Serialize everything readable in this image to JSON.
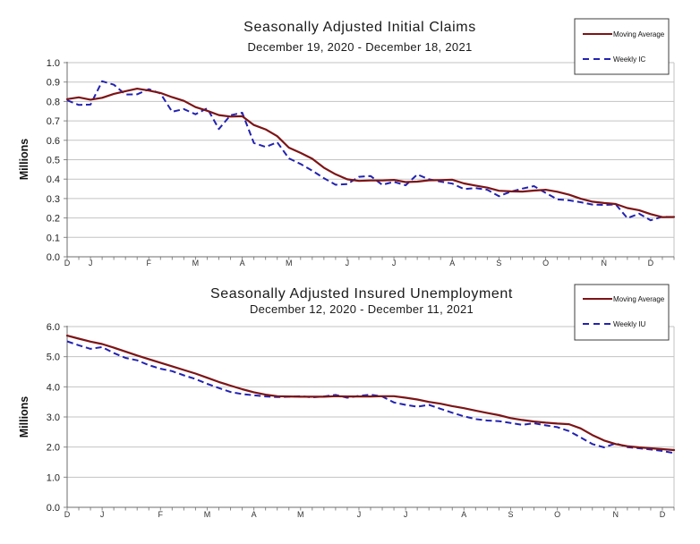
{
  "page": {
    "background": "#ffffff"
  },
  "colors": {
    "moving_average": "#7d1416",
    "weekly": "#2222b2",
    "gridline": "#c3c3c3",
    "axis": "#6e6e6e",
    "tick": "#8a8a8a",
    "text": "#1a1a1a"
  },
  "chart_data": [
    {
      "type": "line",
      "title": "Seasonally Adjusted Initial Claims",
      "subtitle": "December 19, 2020 - December 18, 2021",
      "ylabel": "Millions",
      "xlabel": "",
      "ylim": [
        0.0,
        1.0
      ],
      "ytick_labels": [
        "1.0",
        "0.9",
        "0.8",
        "0.7",
        "0.6",
        "0.5",
        "0.4",
        "0.3",
        "0.2",
        "0.1",
        "0.0"
      ],
      "x_month_labels": [
        "D",
        "J",
        "F",
        "M",
        "A",
        "M",
        "J",
        "J",
        "A",
        "S",
        "O",
        "N",
        "D"
      ],
      "month_tick_indices": [
        0,
        2,
        7,
        11,
        15,
        19,
        24,
        28,
        33,
        37,
        41,
        46,
        50
      ],
      "grid": "horizontal",
      "legend_position": "top-right",
      "series": [
        {
          "name": "Moving Average",
          "style": "solid",
          "color": "#7d1416",
          "values": [
            0.812,
            0.821,
            0.809,
            0.819,
            0.839,
            0.853,
            0.866,
            0.856,
            0.844,
            0.822,
            0.803,
            0.771,
            0.752,
            0.73,
            0.722,
            0.724,
            0.679,
            0.656,
            0.621,
            0.562,
            0.535,
            0.505,
            0.459,
            0.425,
            0.399,
            0.391,
            0.393,
            0.393,
            0.396,
            0.385,
            0.387,
            0.394,
            0.395,
            0.397,
            0.378,
            0.367,
            0.356,
            0.34,
            0.337,
            0.336,
            0.341,
            0.345,
            0.335,
            0.32,
            0.299,
            0.284,
            0.277,
            0.272,
            0.251,
            0.24,
            0.22,
            0.204,
            0.205
          ]
        },
        {
          "name": "Weekly IC",
          "style": "dashed",
          "color": "#2222b2",
          "values": [
            0.806,
            0.782,
            0.784,
            0.904,
            0.886,
            0.836,
            0.837,
            0.863,
            0.841,
            0.747,
            0.761,
            0.734,
            0.765,
            0.658,
            0.729,
            0.742,
            0.586,
            0.566,
            0.59,
            0.507,
            0.478,
            0.444,
            0.405,
            0.371,
            0.374,
            0.412,
            0.416,
            0.371,
            0.386,
            0.368,
            0.424,
            0.399,
            0.387,
            0.377,
            0.349,
            0.354,
            0.345,
            0.312,
            0.335,
            0.351,
            0.364,
            0.329,
            0.296,
            0.291,
            0.281,
            0.269,
            0.267,
            0.27,
            0.199,
            0.222,
            0.188,
            0.206,
            0.205
          ]
        }
      ]
    },
    {
      "type": "line",
      "title": "Seasonally Adjusted Insured Unemployment",
      "subtitle": "December 12, 2020 - December 11, 2021",
      "ylabel": "Millions",
      "xlabel": "",
      "ylim": [
        0.0,
        6.0
      ],
      "ytick_labels": [
        "6.0",
        "5.0",
        "4.0",
        "3.0",
        "2.0",
        "1.0",
        "0.0"
      ],
      "x_month_labels": [
        "D",
        "J",
        "F",
        "M",
        "A",
        "M",
        "J",
        "J",
        "A",
        "S",
        "O",
        "N",
        "D"
      ],
      "month_tick_indices": [
        0,
        3,
        8,
        12,
        16,
        20,
        25,
        29,
        34,
        38,
        42,
        47,
        51
      ],
      "grid": "horizontal",
      "legend_position": "top-right",
      "series": [
        {
          "name": "Moving Average",
          "style": "solid",
          "color": "#7d1416",
          "values": [
            5.7,
            5.6,
            5.5,
            5.42,
            5.3,
            5.17,
            5.04,
            4.92,
            4.8,
            4.68,
            4.56,
            4.44,
            4.3,
            4.16,
            4.04,
            3.92,
            3.82,
            3.74,
            3.69,
            3.68,
            3.67,
            3.67,
            3.67,
            3.69,
            3.68,
            3.68,
            3.68,
            3.69,
            3.69,
            3.64,
            3.58,
            3.5,
            3.44,
            3.36,
            3.29,
            3.21,
            3.13,
            3.06,
            2.96,
            2.9,
            2.85,
            2.81,
            2.78,
            2.76,
            2.62,
            2.4,
            2.22,
            2.1,
            2.03,
            1.99,
            1.96,
            1.93,
            1.9
          ]
        },
        {
          "name": "Weekly IU",
          "style": "dashed",
          "color": "#2222b2",
          "values": [
            5.51,
            5.38,
            5.26,
            5.32,
            5.12,
            4.96,
            4.88,
            4.72,
            4.6,
            4.52,
            4.38,
            4.26,
            4.1,
            3.96,
            3.83,
            3.76,
            3.72,
            3.68,
            3.66,
            3.67,
            3.69,
            3.65,
            3.68,
            3.73,
            3.64,
            3.7,
            3.74,
            3.68,
            3.48,
            3.4,
            3.34,
            3.4,
            3.27,
            3.14,
            3.02,
            2.93,
            2.88,
            2.86,
            2.8,
            2.74,
            2.79,
            2.72,
            2.66,
            2.53,
            2.32,
            2.1,
            1.99,
            2.12,
            2.0,
            1.96,
            1.92,
            1.87,
            1.8
          ]
        }
      ]
    }
  ]
}
